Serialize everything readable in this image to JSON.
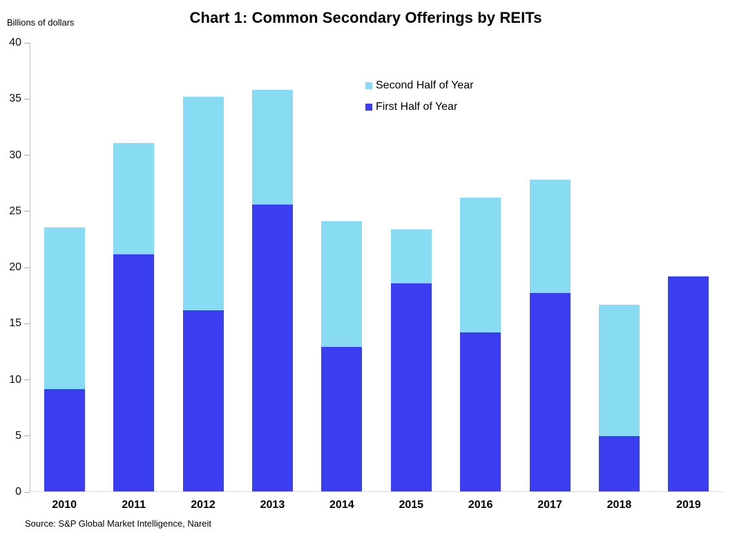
{
  "header": {
    "title": "Chart 1: Common Secondary Offerings by REITs",
    "unit_label": "Billions of dollars"
  },
  "footer": {
    "source": "Source: S&P Global Market Intelligence, Nareit"
  },
  "colors": {
    "first_half": "#3a3df0",
    "second_half": "#87dbf2",
    "y_axis_line": "#bfbfbf",
    "x_axis_line": "#d9d9d9",
    "tick": "#a6a6a6"
  },
  "chart_data": {
    "type": "bar",
    "stacked": true,
    "title": "Chart 1: Common Secondary Offerings by REITs",
    "xlabel": "",
    "ylabel": "Billions of dollars",
    "categories": [
      "2010",
      "2011",
      "2012",
      "2013",
      "2014",
      "2015",
      "2016",
      "2017",
      "2018",
      "2019"
    ],
    "series": [
      {
        "name": "First Half of Year",
        "color": "#3a3df0",
        "values": [
          9.2,
          21.2,
          16.2,
          25.6,
          12.9,
          18.6,
          14.2,
          17.7,
          5.0,
          19.2
        ]
      },
      {
        "name": "Second Half of Year",
        "color": "#87dbf2",
        "values": [
          14.4,
          9.9,
          19.0,
          10.2,
          11.2,
          4.8,
          12.0,
          10.1,
          11.7,
          0.0
        ]
      }
    ],
    "totals": [
      23.6,
      31.1,
      35.2,
      35.8,
      24.1,
      23.4,
      26.2,
      27.8,
      16.7,
      19.2
    ],
    "ylim": [
      0,
      40
    ],
    "yticks": [
      0,
      5,
      10,
      15,
      20,
      25,
      30,
      35,
      40
    ],
    "grid": false,
    "legend_position": "upper-center",
    "legend_order": [
      "Second Half of Year",
      "First Half of Year"
    ]
  }
}
